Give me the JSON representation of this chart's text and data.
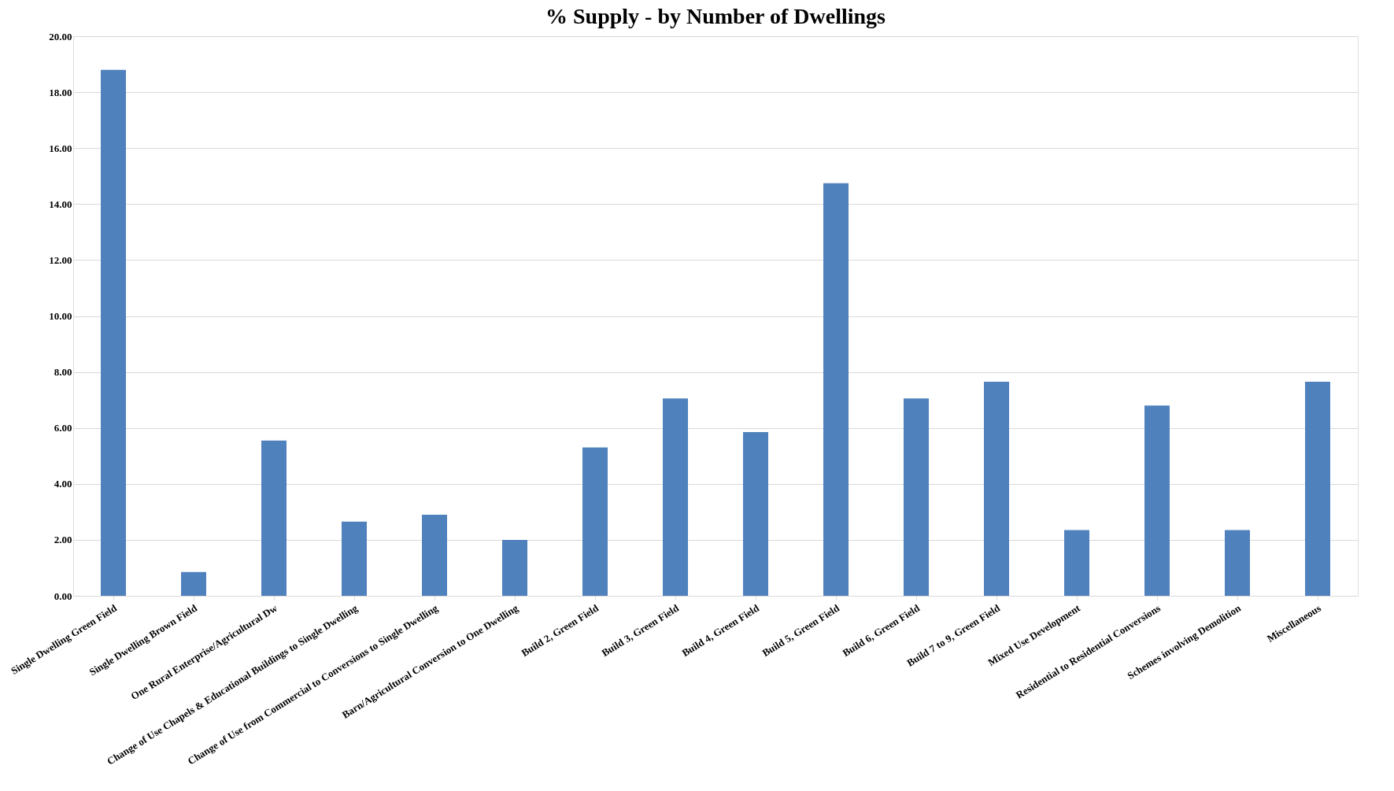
{
  "chart_data": {
    "type": "bar",
    "title": "% Supply - by Number of Dwellings",
    "categories": [
      "Single Dwelling Green Field",
      "Single Dwelling Brown Field",
      "One Rural Enterprise/Agricultural Dw",
      "Change of Use Chapels & Educational Buildings to Single Dwelling",
      "Change of Use from Commercial to Conversions to Single Dwelling",
      "Barn/Agricultural Conversion to One Dwelling",
      "Build 2, Green Field",
      "Build 3, Green Field",
      "Build 4, Green Field",
      "Build 5, Green Field",
      "Build 6, Green Field",
      "Build 7 to 9, Green Field",
      "Mixed Use Development",
      "Residential to Residential Conversions",
      "Schemes involving Demolition",
      "Miscellaneous"
    ],
    "values": [
      18.8,
      0.85,
      5.55,
      2.65,
      2.9,
      2.0,
      5.3,
      7.05,
      5.85,
      14.75,
      7.05,
      7.65,
      2.35,
      6.8,
      2.35,
      7.65
    ],
    "color": "#4f81bd",
    "ylim": [
      0,
      20
    ],
    "yticks": [
      {
        "value": 0,
        "label": "0.00"
      },
      {
        "value": 2,
        "label": "2.00"
      },
      {
        "value": 4,
        "label": "4.00"
      },
      {
        "value": 6,
        "label": "6.00"
      },
      {
        "value": 8,
        "label": "8.00"
      },
      {
        "value": 10,
        "label": "10.00"
      },
      {
        "value": 12,
        "label": "12.00"
      },
      {
        "value": 14,
        "label": "14.00"
      },
      {
        "value": 16,
        "label": "16.00"
      },
      {
        "value": 18,
        "label": "18.00"
      },
      {
        "value": 20,
        "label": "20.00"
      }
    ],
    "grid": "y"
  }
}
